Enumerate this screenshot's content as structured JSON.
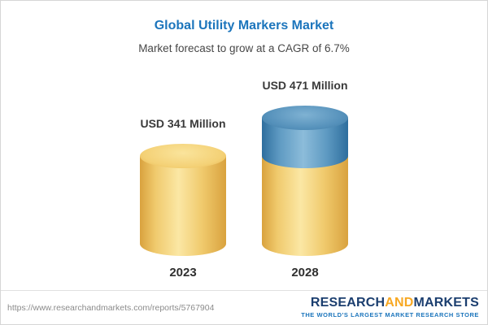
{
  "header": {
    "title": "Global Utility Markers Market",
    "subtitle": "Market forecast to grow at a CAGR of 6.7%"
  },
  "chart_data": {
    "type": "bar",
    "categories": [
      "2023",
      "2028"
    ],
    "values": [
      341,
      471
    ],
    "unit": "USD Million",
    "value_labels": [
      "USD 341 Million",
      "USD 471 Million"
    ],
    "title": "Global Utility Markers Market",
    "subtitle": "Market forecast to grow at a CAGR of 6.7%",
    "cagr": "6.7%",
    "baseline": 341,
    "legend_position": "none",
    "grid": false,
    "colors": {
      "base_segment": "#F2CD6E",
      "growth_segment": "#4A89B3"
    }
  },
  "footer": {
    "source_url": "https://www.researchandmarkets.com/reports/5767904",
    "logo": {
      "part1": "RESEARCH",
      "part2": "AND",
      "part3": "MARKETS",
      "tagline": "THE WORLD'S LARGEST MARKET RESEARCH STORE"
    }
  }
}
